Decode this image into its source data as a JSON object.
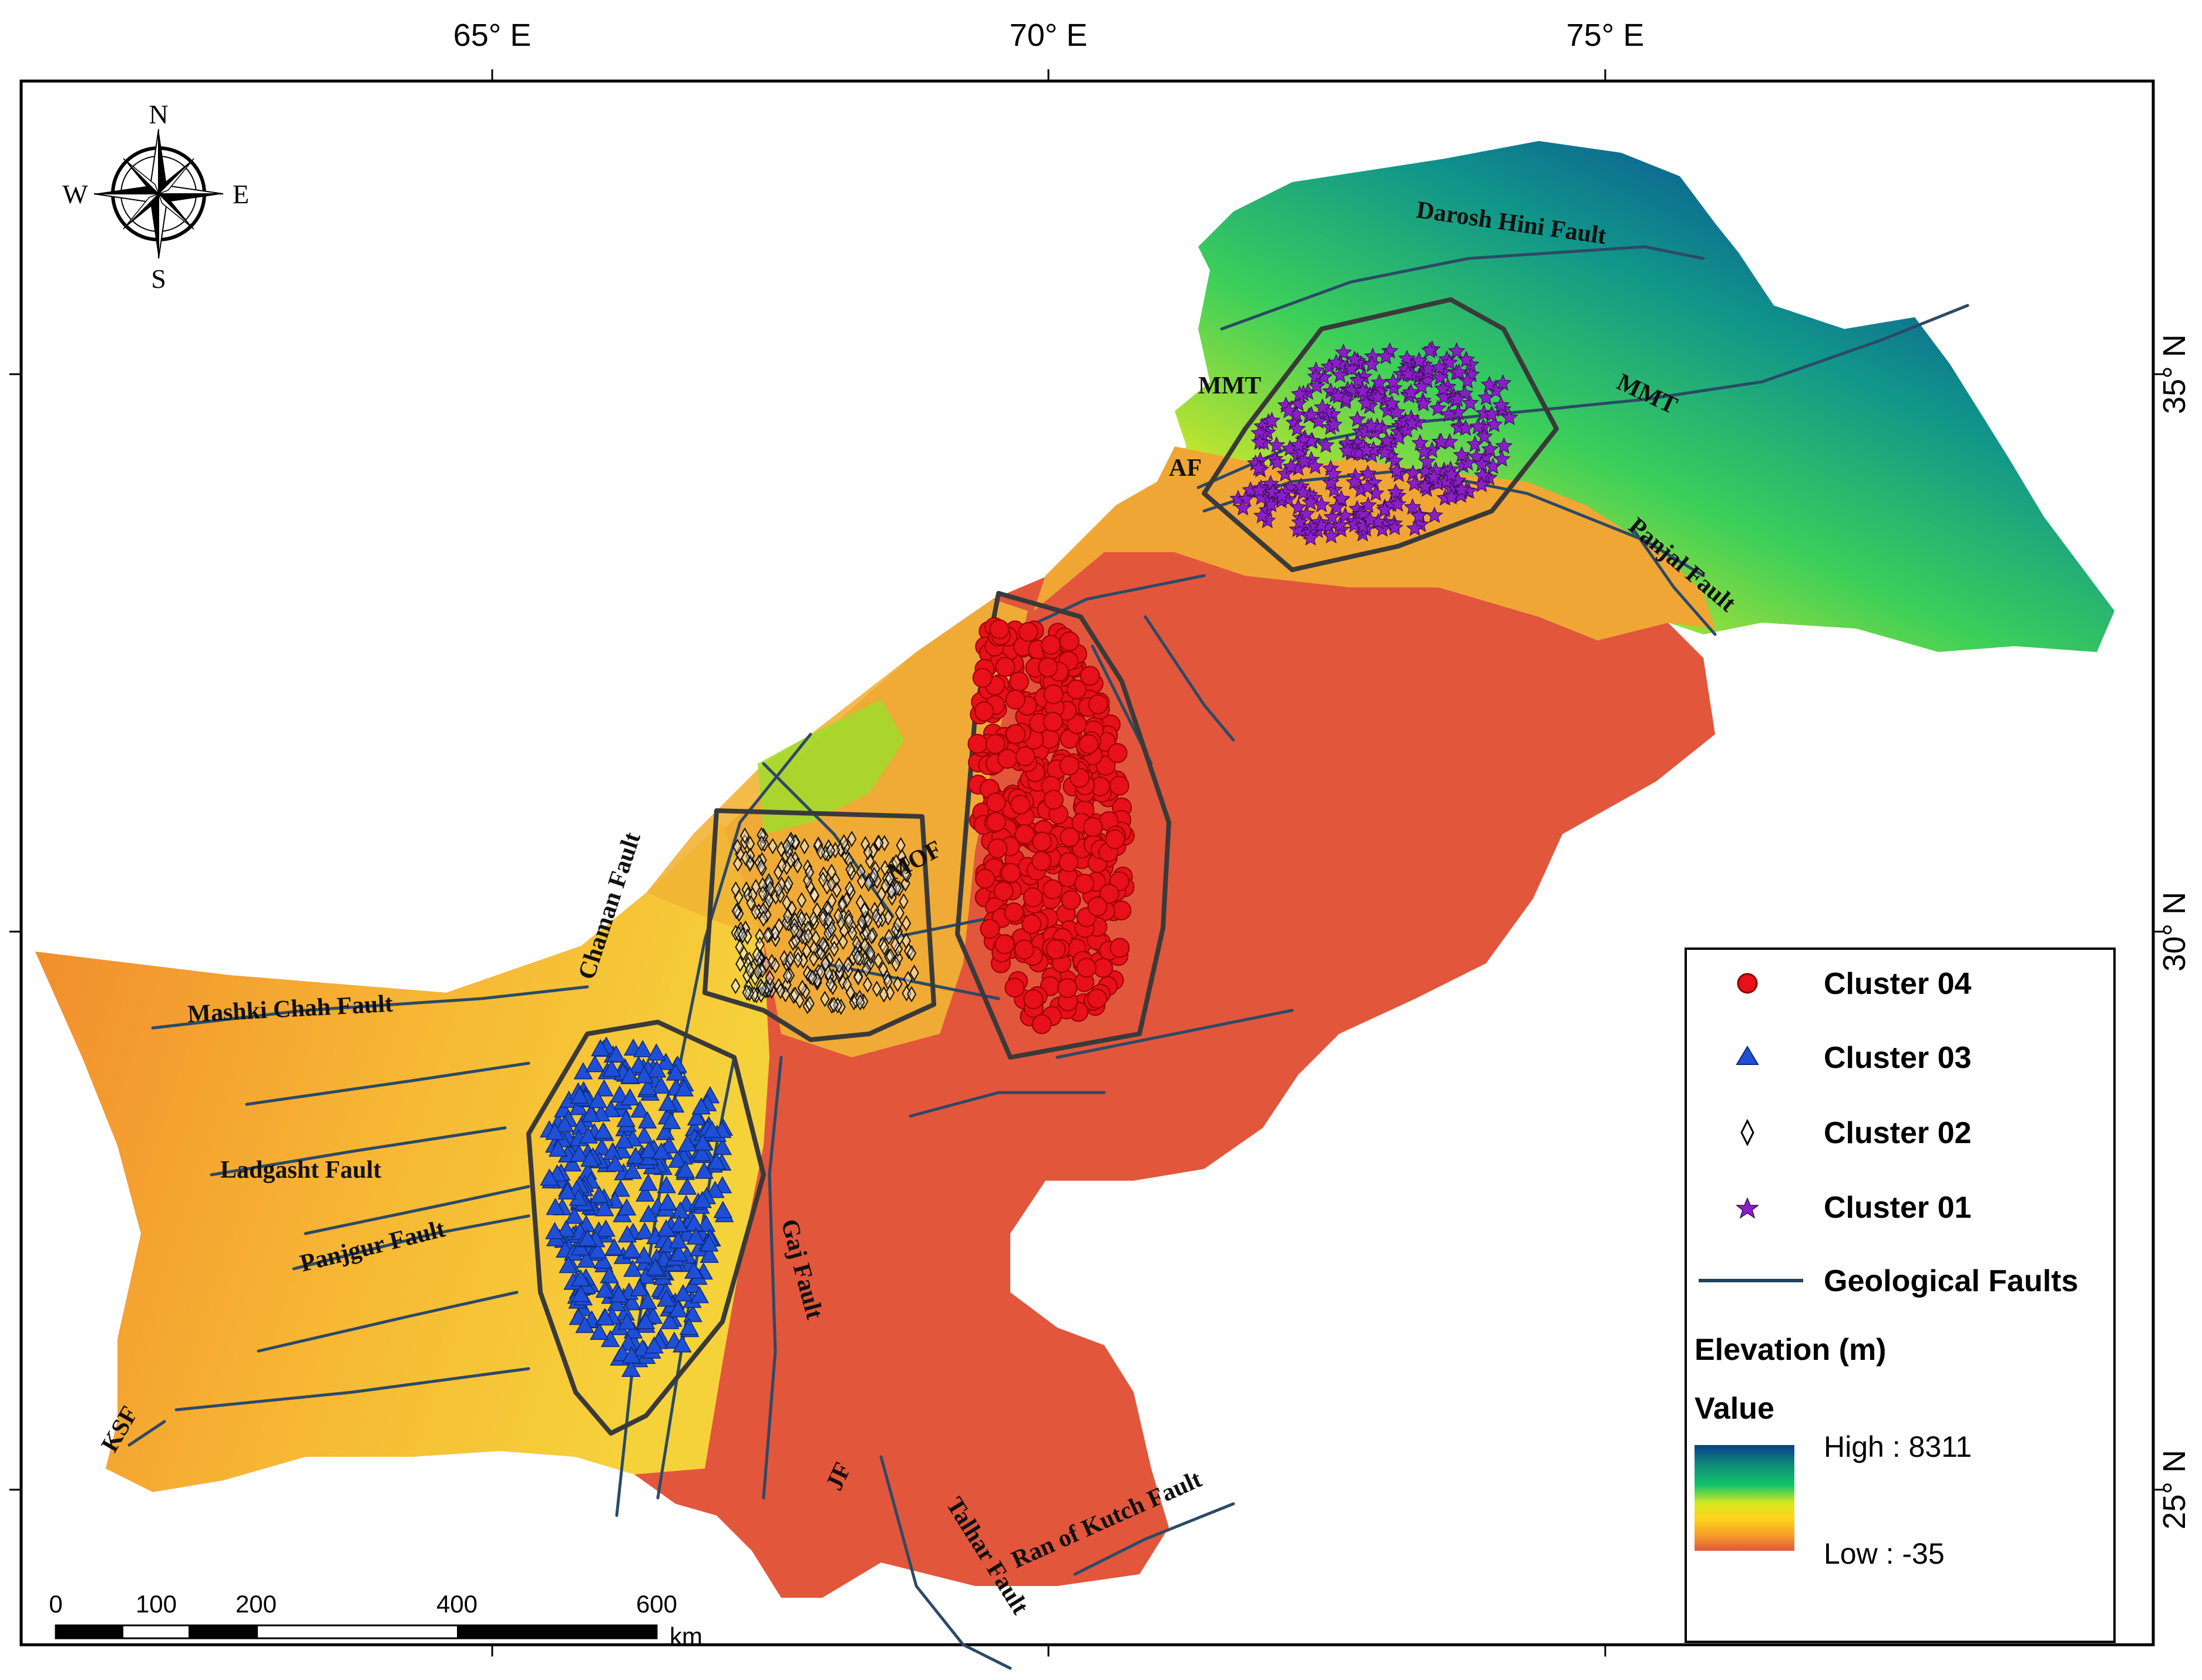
{
  "coordinates": {
    "top": [
      "65° E",
      "70° E",
      "75° E"
    ],
    "right": [
      "35° N",
      "30° N",
      "25° N"
    ]
  },
  "compass": {
    "n": "N",
    "s": "S",
    "e": "E",
    "w": "W"
  },
  "fault_labels": {
    "darosh": "Darosh Hini Fault",
    "mmt_left": "MMT",
    "mmt_right": "MMT",
    "ak": "AF",
    "panjal": "Panjal Fault",
    "chaman": "Chaman Fault",
    "mof": "MOF",
    "mashki": "Mashki Chah Fault",
    "ladgasht": "Ladgasht Fault",
    "panjgur": "Panjgur Fault",
    "ksf": "KSF",
    "gaj": "Gaj Fault",
    "jf": "JF",
    "talhar": "Talhar Fault",
    "ran": "Ran of Kutch Fault"
  },
  "legend": {
    "items": [
      {
        "label": "Cluster 04",
        "symbol": "circle",
        "color": "#e8101a"
      },
      {
        "label": "Cluster 03",
        "symbol": "triangle",
        "color": "#1f4fd6"
      },
      {
        "label": "Cluster 02",
        "symbol": "diamond",
        "color": "#ffffff"
      },
      {
        "label": "Cluster 01",
        "symbol": "star",
        "color": "#8a1fc7"
      },
      {
        "label": "Geological Faults",
        "symbol": "line",
        "color": "#23425e"
      }
    ],
    "elevation_title": "Elevation (m)",
    "value_title": "Value",
    "high": "High : 8311",
    "low": "Low : -35",
    "ramp_colors": [
      "#0b3d8c",
      "#0e8a7a",
      "#12c46a",
      "#d9e820",
      "#ffd21a",
      "#f6a028",
      "#e2563c"
    ]
  },
  "scale_bar": {
    "ticks": [
      "0",
      "100",
      "200",
      "400",
      "600"
    ],
    "unit": "km"
  },
  "colors": {
    "lowland": "#e2563c",
    "fault_line": "#2c4a66",
    "cluster_boundary": "#3a3a3a"
  }
}
